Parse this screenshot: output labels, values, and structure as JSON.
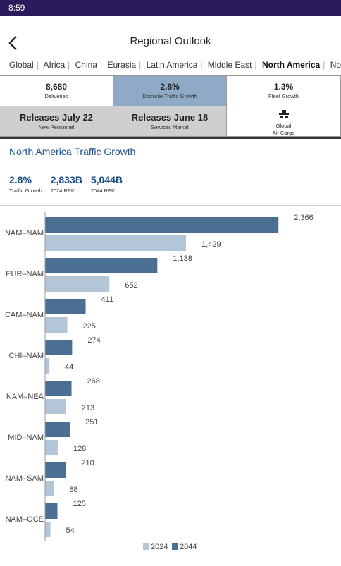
{
  "status_bar": {
    "time": "8:59"
  },
  "header": {
    "title": "Regional Outlook"
  },
  "tabs": [
    "Global",
    "Africa",
    "China",
    "Eurasia",
    "Latin America",
    "Middle East",
    "North America",
    "Northeast Asia"
  ],
  "tiles": [
    {
      "value": "8,680",
      "label": "Deliveries"
    },
    {
      "value": "2.8%",
      "label": "Domicile Traffic Growth"
    },
    {
      "value": "1.3%",
      "label": "Fleet Growth"
    },
    {
      "value": "Releases July 22",
      "label": "New Personnel"
    },
    {
      "value": "Releases June 18",
      "label": "Services Market"
    },
    {
      "value": "Global",
      "label": "Air Cargo"
    }
  ],
  "section": {
    "title": "North America  Traffic Growth",
    "stats": [
      {
        "value": "2.8%",
        "label": "Traffic Growth"
      },
      {
        "value": "2,833B",
        "label": "2024 RPK"
      },
      {
        "value": "5,044B",
        "label": "2044 RPK"
      }
    ]
  },
  "chart_data": {
    "type": "hbar",
    "categories": [
      "NAM–NAM",
      "EUR–NAM",
      "CAM–NAM",
      "CHI–NAM",
      "NAM–NEA",
      "MID–NAM",
      "NAM–SAM",
      "NAM–OCE"
    ],
    "xlim": [
      0,
      2500
    ],
    "series": [
      {
        "name": "2024",
        "color": "#b3c6d8",
        "values": [
          1429,
          652,
          225,
          44,
          213,
          128,
          88,
          54
        ],
        "value_labels": [
          "1,429",
          "652",
          "225",
          "44",
          "213",
          "128",
          "88",
          "54"
        ]
      },
      {
        "name": "2044",
        "color": "#4a6f93",
        "values": [
          2366,
          1138,
          411,
          274,
          268,
          251,
          210,
          125
        ],
        "value_labels": [
          "2,366",
          "1,138",
          "411",
          "274",
          "268",
          "251",
          "210",
          "125"
        ]
      }
    ]
  }
}
